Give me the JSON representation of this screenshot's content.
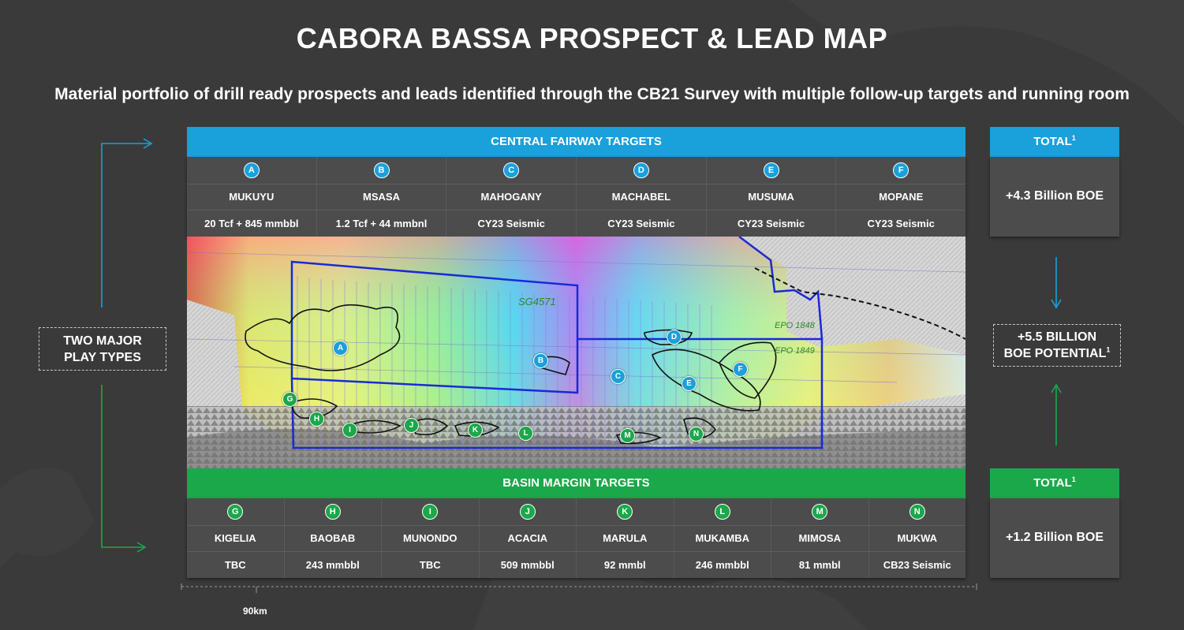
{
  "title": "CABORA BASSA PROSPECT & LEAD MAP",
  "subtitle": "Material portfolio of drill ready prospects and leads identified through the CB21 Survey with multiple follow-up targets and running room",
  "central": {
    "header": "CENTRAL FAIRWAY TARGETS",
    "targets": [
      {
        "letter": "A",
        "name": "MUKUYU",
        "value": "20 Tcf + 845 mmbbl"
      },
      {
        "letter": "B",
        "name": "MSASA",
        "value": "1.2 Tcf + 44 mmbnl"
      },
      {
        "letter": "C",
        "name": "MAHOGANY",
        "value": "CY23 Seismic"
      },
      {
        "letter": "D",
        "name": "MACHABEL",
        "value": "CY23 Seismic"
      },
      {
        "letter": "E",
        "name": "MUSUMA",
        "value": "CY23 Seismic"
      },
      {
        "letter": "F",
        "name": "MOPANE",
        "value": "CY23 Seismic"
      }
    ],
    "total_label": "TOTAL",
    "total_sup": "1",
    "total_value": "+4.3 Billion BOE"
  },
  "margin": {
    "header": "BASIN MARGIN TARGETS",
    "targets": [
      {
        "letter": "G",
        "name": "KIGELIA",
        "value": "TBC"
      },
      {
        "letter": "H",
        "name": "BAOBAB",
        "value": "243 mmbbl"
      },
      {
        "letter": "I",
        "name": "MUNONDO",
        "value": "TBC"
      },
      {
        "letter": "J",
        "name": "ACACIA",
        "value": "509 mmbbl"
      },
      {
        "letter": "K",
        "name": "MARULA",
        "value": "92 mmbl"
      },
      {
        "letter": "L",
        "name": "MUKAMBA",
        "value": "246 mmbbl"
      },
      {
        "letter": "M",
        "name": "MIMOSA",
        "value": "81 mmbl"
      },
      {
        "letter": "N",
        "name": "MUKWA",
        "value": "CB23 Seismic"
      }
    ],
    "total_label": "TOTAL",
    "total_sup": "1",
    "total_value": "+1.2 Billion BOE"
  },
  "play_types": {
    "line1": "TWO MAJOR",
    "line2": "PLAY TYPES"
  },
  "potential": {
    "line1": "+5.5 BILLION",
    "line2": "BOE POTENTIAL",
    "sup": "1"
  },
  "map_labels": {
    "block": "SG4571",
    "epo1": "EPO 1848",
    "epo2": "EPO 1849"
  },
  "scale": "90km",
  "colors": {
    "blue": "#1aa0db",
    "green": "#1ba84a",
    "background": "#3a3a3b",
    "panel": "#4c4c4d"
  }
}
